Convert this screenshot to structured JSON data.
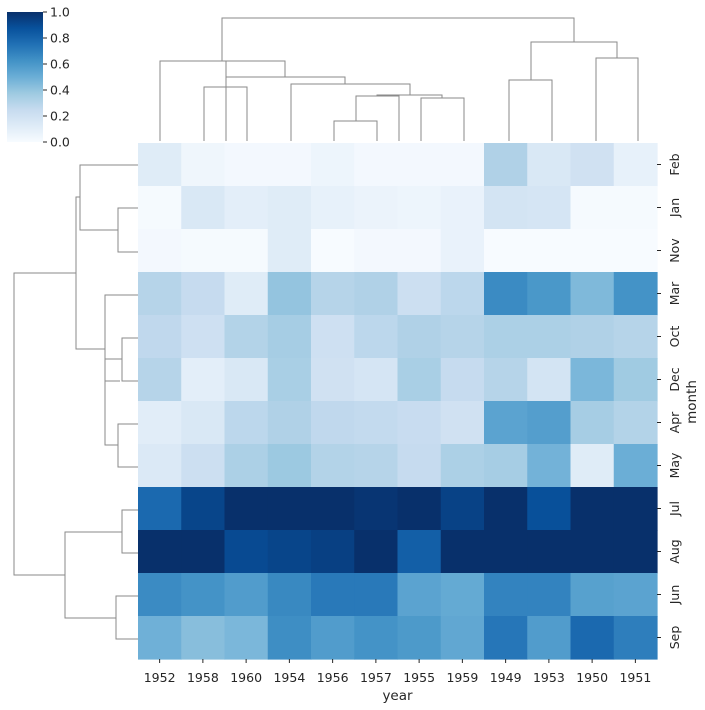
{
  "chart_data": {
    "type": "heatmap",
    "title": "",
    "xlabel": "year",
    "ylabel": "month",
    "x_categories": [
      "1952",
      "1958",
      "1960",
      "1954",
      "1956",
      "1957",
      "1955",
      "1959",
      "1949",
      "1953",
      "1950",
      "1951"
    ],
    "y_categories": [
      "Feb",
      "Jan",
      "Nov",
      "Mar",
      "Oct",
      "Dec",
      "Apr",
      "May",
      "Jul",
      "Aug",
      "Jun",
      "Sep"
    ],
    "values": [
      [
        0.12,
        0.04,
        0.02,
        0.02,
        0.05,
        0.02,
        0.02,
        0.02,
        0.32,
        0.15,
        0.2,
        0.08
      ],
      [
        0.01,
        0.15,
        0.1,
        0.12,
        0.08,
        0.06,
        0.05,
        0.07,
        0.18,
        0.17,
        0.01,
        0.01
      ],
      [
        0.02,
        0.01,
        0.01,
        0.12,
        0.0,
        0.02,
        0.02,
        0.07,
        0.0,
        0.0,
        0.0,
        0.0
      ],
      [
        0.3,
        0.25,
        0.12,
        0.4,
        0.3,
        0.32,
        0.22,
        0.28,
        0.65,
        0.6,
        0.45,
        0.62
      ],
      [
        0.27,
        0.21,
        0.31,
        0.35,
        0.21,
        0.28,
        0.32,
        0.3,
        0.33,
        0.33,
        0.32,
        0.3
      ],
      [
        0.3,
        0.1,
        0.15,
        0.34,
        0.2,
        0.17,
        0.34,
        0.25,
        0.3,
        0.18,
        0.46,
        0.37
      ],
      [
        0.11,
        0.15,
        0.28,
        0.32,
        0.27,
        0.26,
        0.24,
        0.2,
        0.55,
        0.57,
        0.35,
        0.31
      ],
      [
        0.14,
        0.22,
        0.33,
        0.38,
        0.31,
        0.3,
        0.25,
        0.33,
        0.35,
        0.48,
        0.12,
        0.5
      ],
      [
        0.78,
        0.92,
        1.0,
        1.0,
        1.0,
        0.98,
        1.0,
        0.93,
        1.0,
        0.88,
        1.0,
        1.0
      ],
      [
        1.0,
        1.0,
        0.9,
        0.92,
        0.94,
        1.0,
        0.82,
        1.0,
        1.0,
        1.0,
        1.0,
        1.0
      ],
      [
        0.65,
        0.62,
        0.58,
        0.66,
        0.72,
        0.72,
        0.55,
        0.52,
        0.68,
        0.68,
        0.56,
        0.55
      ],
      [
        0.49,
        0.43,
        0.46,
        0.64,
        0.58,
        0.62,
        0.59,
        0.53,
        0.73,
        0.58,
        0.78,
        0.7
      ]
    ],
    "colormap": "Blues",
    "colorbar": {
      "vmin": 0.0,
      "vmax": 1.0,
      "ticks": [
        "0.0",
        "0.2",
        "0.4",
        "0.6",
        "0.8",
        "1.0"
      ]
    },
    "row_dendrogram": true,
    "col_dendrogram": true,
    "legend_placement": "top-left"
  }
}
